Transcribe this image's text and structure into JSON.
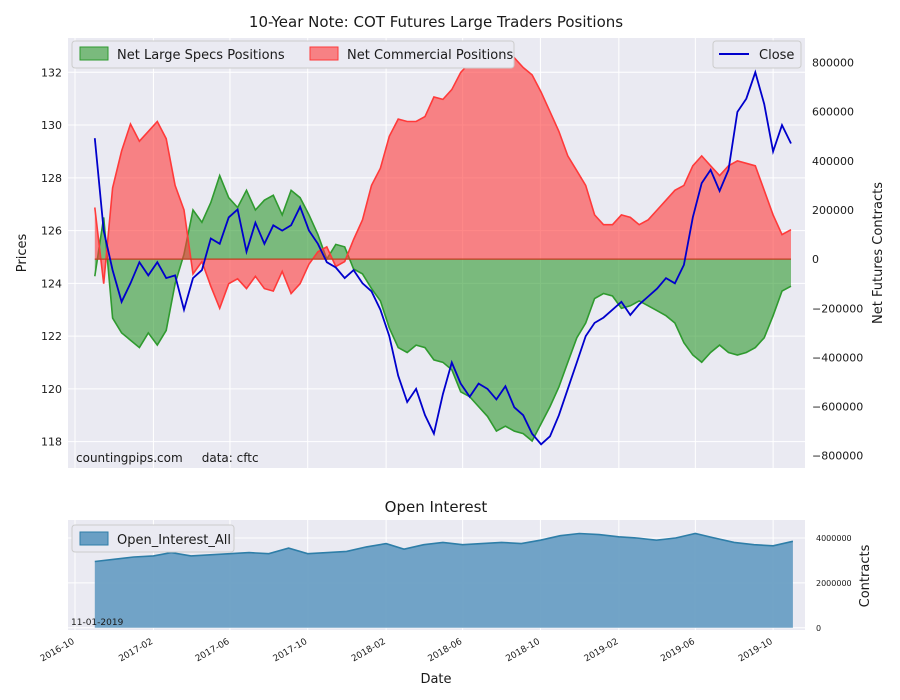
{
  "chart_data": [
    {
      "type": "area",
      "title": "10-Year Note: COT Futures Large Traders Positions",
      "xlabel": "",
      "ylabel_left": "Prices",
      "ylabel_right": "Net Futures Contracts",
      "ylim_left": [
        117,
        133.3
      ],
      "ylim_right": [
        -850000,
        900000
      ],
      "yticks_left": [
        "118",
        "120",
        "122",
        "124",
        "126",
        "128",
        "130",
        "132"
      ],
      "yticks_right": [
        "−800000",
        "−600000",
        "−400000",
        "−200000",
        "0",
        "200000",
        "400000",
        "600000",
        "800000"
      ],
      "legend_left": [
        "Net Large Specs Positions",
        "Net Commercial Positions"
      ],
      "legend_right": [
        "Close"
      ],
      "grid": true,
      "colors": {
        "specs": "#2f9a2f",
        "commercial": "#ff3a3a",
        "close": "#0000cc"
      },
      "annotation": "countingpips.com     data: cftc",
      "series": [
        {
          "name": "Net Large Specs Positions",
          "axis": "right",
          "x": [
            "2016-11-01",
            "2016-11-15",
            "2016-11-29",
            "2016-12-13",
            "2016-12-27",
            "2017-01-10",
            "2017-01-24",
            "2017-02-07",
            "2017-02-21",
            "2017-03-07",
            "2017-03-21",
            "2017-04-04",
            "2017-04-18",
            "2017-05-02",
            "2017-05-16",
            "2017-05-30",
            "2017-06-13",
            "2017-06-27",
            "2017-07-11",
            "2017-07-25",
            "2017-08-08",
            "2017-08-22",
            "2017-09-05",
            "2017-09-19",
            "2017-10-03",
            "2017-10-17",
            "2017-10-31",
            "2017-11-14",
            "2017-11-28",
            "2017-12-12",
            "2017-12-26",
            "2018-01-09",
            "2018-01-23",
            "2018-02-06",
            "2018-02-20",
            "2018-03-06",
            "2018-03-20",
            "2018-04-03",
            "2018-04-17",
            "2018-05-01",
            "2018-05-15",
            "2018-05-29",
            "2018-06-12",
            "2018-06-26",
            "2018-07-10",
            "2018-07-24",
            "2018-08-07",
            "2018-08-21",
            "2018-09-04",
            "2018-09-18",
            "2018-10-02",
            "2018-10-16",
            "2018-10-30",
            "2018-11-13",
            "2018-11-27",
            "2018-12-11",
            "2018-12-25",
            "2019-01-08",
            "2019-01-22",
            "2019-02-05",
            "2019-02-19",
            "2019-03-05",
            "2019-03-19",
            "2019-04-02",
            "2019-04-16",
            "2019-04-30",
            "2019-05-14",
            "2019-05-28",
            "2019-06-11",
            "2019-06-25",
            "2019-07-09",
            "2019-07-23",
            "2019-08-06",
            "2019-08-20",
            "2019-09-03",
            "2019-09-17",
            "2019-10-01",
            "2019-10-15",
            "2019-10-29"
          ],
          "values": [
            -70000,
            170000,
            -240000,
            -300000,
            -330000,
            -360000,
            -300000,
            -350000,
            -290000,
            -100000,
            20000,
            200000,
            150000,
            230000,
            340000,
            250000,
            210000,
            280000,
            200000,
            240000,
            260000,
            180000,
            280000,
            250000,
            180000,
            100000,
            0,
            60000,
            50000,
            -40000,
            -60000,
            -120000,
            -170000,
            -280000,
            -360000,
            -380000,
            -350000,
            -360000,
            -410000,
            -420000,
            -450000,
            -540000,
            -560000,
            -600000,
            -640000,
            -700000,
            -680000,
            -700000,
            -710000,
            -740000,
            -670000,
            -600000,
            -520000,
            -420000,
            -320000,
            -260000,
            -160000,
            -140000,
            -150000,
            -200000,
            -190000,
            -170000,
            -190000,
            -210000,
            -230000,
            -260000,
            -340000,
            -390000,
            -420000,
            -380000,
            -350000,
            -380000,
            -390000,
            -380000,
            -360000,
            -320000,
            -230000,
            -130000,
            -110000
          ]
        },
        {
          "name": "Net Commercial Positions",
          "axis": "right",
          "x": [
            "2016-11-01",
            "2016-11-15",
            "2016-11-29",
            "2016-12-13",
            "2016-12-27",
            "2017-01-10",
            "2017-01-24",
            "2017-02-07",
            "2017-02-21",
            "2017-03-07",
            "2017-03-21",
            "2017-04-04",
            "2017-04-18",
            "2017-05-02",
            "2017-05-16",
            "2017-05-30",
            "2017-06-13",
            "2017-06-27",
            "2017-07-11",
            "2017-07-25",
            "2017-08-08",
            "2017-08-22",
            "2017-09-05",
            "2017-09-19",
            "2017-10-03",
            "2017-10-17",
            "2017-10-31",
            "2017-11-14",
            "2017-11-28",
            "2017-12-12",
            "2017-12-26",
            "2018-01-09",
            "2018-01-23",
            "2018-02-06",
            "2018-02-20",
            "2018-03-06",
            "2018-03-20",
            "2018-04-03",
            "2018-04-17",
            "2018-05-01",
            "2018-05-15",
            "2018-05-29",
            "2018-06-12",
            "2018-06-26",
            "2018-07-10",
            "2018-07-24",
            "2018-08-07",
            "2018-08-21",
            "2018-09-04",
            "2018-09-18",
            "2018-10-02",
            "2018-10-16",
            "2018-10-30",
            "2018-11-13",
            "2018-11-27",
            "2018-12-11",
            "2018-12-25",
            "2019-01-08",
            "2019-01-22",
            "2019-02-05",
            "2019-02-19",
            "2019-03-05",
            "2019-03-19",
            "2019-04-02",
            "2019-04-16",
            "2019-04-30",
            "2019-05-14",
            "2019-05-28",
            "2019-06-11",
            "2019-06-25",
            "2019-07-09",
            "2019-07-23",
            "2019-08-06",
            "2019-08-20",
            "2019-09-03",
            "2019-09-17",
            "2019-10-01",
            "2019-10-15",
            "2019-10-29"
          ],
          "values": [
            210000,
            -100000,
            290000,
            440000,
            550000,
            480000,
            520000,
            560000,
            490000,
            300000,
            200000,
            -60000,
            -10000,
            -110000,
            -200000,
            -100000,
            -80000,
            -120000,
            -70000,
            -120000,
            -130000,
            -50000,
            -140000,
            -100000,
            -20000,
            30000,
            50000,
            -30000,
            -10000,
            80000,
            160000,
            300000,
            370000,
            500000,
            570000,
            560000,
            560000,
            580000,
            660000,
            650000,
            690000,
            760000,
            800000,
            830000,
            860000,
            850000,
            800000,
            820000,
            780000,
            750000,
            680000,
            600000,
            520000,
            420000,
            360000,
            300000,
            180000,
            140000,
            140000,
            180000,
            170000,
            140000,
            160000,
            200000,
            240000,
            280000,
            300000,
            380000,
            420000,
            380000,
            340000,
            380000,
            400000,
            390000,
            380000,
            280000,
            180000,
            100000,
            120000
          ]
        },
        {
          "name": "Close",
          "axis": "left",
          "x": [
            "2016-11-01",
            "2016-11-15",
            "2016-11-29",
            "2016-12-13",
            "2016-12-27",
            "2017-01-10",
            "2017-01-24",
            "2017-02-07",
            "2017-02-21",
            "2017-03-07",
            "2017-03-21",
            "2017-04-04",
            "2017-04-18",
            "2017-05-02",
            "2017-05-16",
            "2017-05-30",
            "2017-06-13",
            "2017-06-27",
            "2017-07-11",
            "2017-07-25",
            "2017-08-08",
            "2017-08-22",
            "2017-09-05",
            "2017-09-19",
            "2017-10-03",
            "2017-10-17",
            "2017-10-31",
            "2017-11-14",
            "2017-11-28",
            "2017-12-12",
            "2017-12-26",
            "2018-01-09",
            "2018-01-23",
            "2018-02-06",
            "2018-02-20",
            "2018-03-06",
            "2018-03-20",
            "2018-04-03",
            "2018-04-17",
            "2018-05-01",
            "2018-05-15",
            "2018-05-29",
            "2018-06-12",
            "2018-06-26",
            "2018-07-10",
            "2018-07-24",
            "2018-08-07",
            "2018-08-21",
            "2018-09-04",
            "2018-09-18",
            "2018-10-02",
            "2018-10-16",
            "2018-10-30",
            "2018-11-13",
            "2018-11-27",
            "2018-12-11",
            "2018-12-25",
            "2019-01-08",
            "2019-01-22",
            "2019-02-05",
            "2019-02-19",
            "2019-03-05",
            "2019-03-19",
            "2019-04-02",
            "2019-04-16",
            "2019-04-30",
            "2019-05-14",
            "2019-05-28",
            "2019-06-11",
            "2019-06-25",
            "2019-07-09",
            "2019-07-23",
            "2019-08-06",
            "2019-08-20",
            "2019-09-03",
            "2019-09-17",
            "2019-10-01",
            "2019-10-15",
            "2019-10-29"
          ],
          "values": [
            129.5,
            126.0,
            124.5,
            123.3,
            124.0,
            124.8,
            124.3,
            124.8,
            124.2,
            124.3,
            123.0,
            124.2,
            124.5,
            125.7,
            125.5,
            126.5,
            126.8,
            125.2,
            126.3,
            125.5,
            126.2,
            126.0,
            126.2,
            126.9,
            126.0,
            125.5,
            124.8,
            124.6,
            124.2,
            124.5,
            124.0,
            123.7,
            123.0,
            122.0,
            120.5,
            119.5,
            120.0,
            119.0,
            118.3,
            119.8,
            121.0,
            120.2,
            119.7,
            120.2,
            120.0,
            119.6,
            120.1,
            119.3,
            119.0,
            118.3,
            117.9,
            118.2,
            119.0,
            120.0,
            121.0,
            122.0,
            122.5,
            122.7,
            123.0,
            123.3,
            122.8,
            123.2,
            123.5,
            123.8,
            124.2,
            124.0,
            124.7,
            126.5,
            127.8,
            128.3,
            127.5,
            128.3,
            130.5,
            131.0,
            132.0,
            130.8,
            129.0,
            130.0,
            129.3
          ]
        }
      ]
    },
    {
      "type": "area",
      "title": "Open Interest",
      "xlabel": "Date",
      "ylabel": "Contracts",
      "ylim": [
        -100000,
        4800000
      ],
      "yticks": [
        "0",
        "2000000",
        "4000000"
      ],
      "xticks": [
        "2016-10",
        "2017-02",
        "2017-06",
        "2017-10",
        "2018-02",
        "2018-06",
        "2018-10",
        "2019-02",
        "2019-06",
        "2019-10"
      ],
      "legend": [
        "Open_Interest_All"
      ],
      "annotation": "11-01-2019",
      "grid": true,
      "colors": {
        "area": "#6a9fc4",
        "line": "#2e7ea8"
      },
      "series": [
        {
          "name": "Open_Interest_All",
          "x": [
            "2016-11-01",
            "2016-12-01",
            "2017-01-01",
            "2017-02-01",
            "2017-03-01",
            "2017-04-01",
            "2017-05-01",
            "2017-06-01",
            "2017-07-01",
            "2017-08-01",
            "2017-09-01",
            "2017-10-01",
            "2017-11-01",
            "2017-12-01",
            "2018-01-01",
            "2018-02-01",
            "2018-03-01",
            "2018-04-01",
            "2018-05-01",
            "2018-06-01",
            "2018-07-01",
            "2018-08-01",
            "2018-09-01",
            "2018-10-01",
            "2018-11-01",
            "2018-12-01",
            "2019-01-01",
            "2019-02-01",
            "2019-03-01",
            "2019-04-01",
            "2019-05-01",
            "2019-06-01",
            "2019-07-01",
            "2019-08-01",
            "2019-09-01",
            "2019-10-01",
            "2019-11-01"
          ],
          "values": [
            2950000,
            3050000,
            3150000,
            3200000,
            3350000,
            3200000,
            3250000,
            3300000,
            3350000,
            3300000,
            3550000,
            3300000,
            3350000,
            3400000,
            3600000,
            3750000,
            3500000,
            3700000,
            3800000,
            3700000,
            3750000,
            3800000,
            3750000,
            3900000,
            4100000,
            4200000,
            4150000,
            4050000,
            4000000,
            3900000,
            4000000,
            4200000,
            4000000,
            3800000,
            3700000,
            3650000,
            3850000
          ]
        }
      ]
    }
  ]
}
